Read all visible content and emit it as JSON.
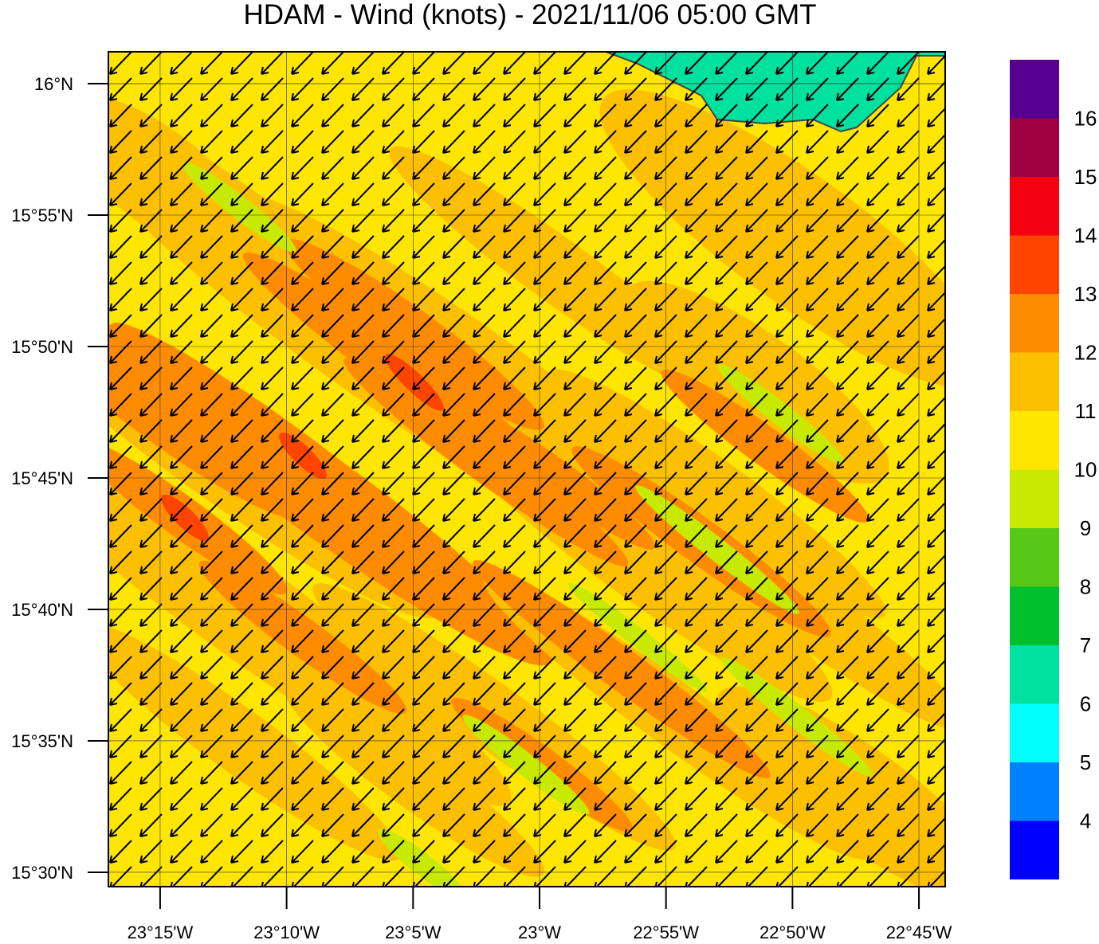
{
  "title": "HDAM - Wind (knots)  -  2021/11/06  05:00 GMT",
  "map": {
    "lat_range": [
      15.4909,
      16.0202
    ],
    "lon_range": [
      -23.2841,
      -22.7327
    ],
    "lat_ticks": [
      {
        "value": 16,
        "label": "16°N"
      },
      {
        "value": 15.916667,
        "label": "15°55'N"
      },
      {
        "value": 15.833333,
        "label": "15°50'N"
      },
      {
        "value": 15.75,
        "label": "15°45'N"
      },
      {
        "value": 15.666667,
        "label": "15°40'N"
      },
      {
        "value": 15.583333,
        "label": "15°35'N"
      },
      {
        "value": 15.5,
        "label": "15°30'N"
      }
    ],
    "lon_ticks": [
      {
        "value": -23.25,
        "label": "23°15'W"
      },
      {
        "value": -23.166667,
        "label": "23°10'W"
      },
      {
        "value": -23.083333,
        "label": "23°5'W"
      },
      {
        "value": -23,
        "label": "23°W"
      },
      {
        "value": -22.916667,
        "label": "22°55'W"
      },
      {
        "value": -22.833333,
        "label": "22°50'W"
      },
      {
        "value": -22.75,
        "label": "22°45'W"
      }
    ]
  },
  "colorbar": {
    "levels": [
      4,
      5,
      6,
      7,
      8,
      9,
      10,
      11,
      12,
      13,
      14,
      15,
      16
    ],
    "colors": [
      "#0000ff",
      "#0080ff",
      "#00ffff",
      "#00e09f",
      "#00c030",
      "#58c818",
      "#c8ea00",
      "#ffe600",
      "#fcc000",
      "#ff8c00",
      "#ff4400",
      "#f50010",
      "#a00040",
      "#580090"
    ]
  }
}
